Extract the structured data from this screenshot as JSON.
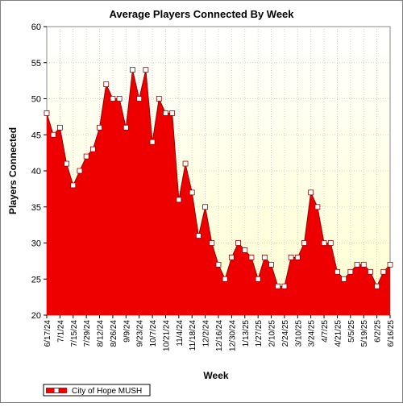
{
  "chart_data": {
    "type": "area",
    "title": "Average Players Connected By Week",
    "xlabel": "Week",
    "ylabel": "Players Connected",
    "ylim": [
      20,
      60
    ],
    "yticks": [
      20,
      25,
      30,
      35,
      40,
      45,
      50,
      55,
      60
    ],
    "x_tick_labels": [
      "6/17/24",
      "7/1/24",
      "7/15/24",
      "7/29/24",
      "8/12/24",
      "8/26/24",
      "9/9/24",
      "9/23/24",
      "10/7/24",
      "10/21/24",
      "11/4/24",
      "11/18/24",
      "12/2/24",
      "12/16/24",
      "12/30/24",
      "1/13/25",
      "1/27/25",
      "2/10/25",
      "2/24/25",
      "3/10/25",
      "3/24/25",
      "4/7/25",
      "4/21/25",
      "5/5/25",
      "5/19/25",
      "6/2/25",
      "6/16/25"
    ],
    "grid": true,
    "legend_position": "bottom-left",
    "colors": {
      "series_fill": "#ee0000",
      "series_line": "#990000",
      "marker_fill": "#ffffff",
      "plot_bg_top": "#ffffff",
      "plot_bg_bottom": "#ffffd0",
      "grid": "#c8c8c8"
    },
    "series": [
      {
        "name": "City of Hope MUSH",
        "values": [
          48,
          45,
          46,
          41,
          38,
          40,
          42,
          43,
          46,
          52,
          50,
          50,
          46,
          54,
          50,
          54,
          44,
          50,
          48,
          48,
          36,
          41,
          37,
          31,
          35,
          30,
          27,
          25,
          28,
          30,
          29,
          28,
          25,
          28,
          27,
          24,
          24,
          28,
          28,
          30,
          37,
          35,
          30,
          30,
          26,
          25,
          26,
          27,
          27,
          26,
          24,
          26,
          27
        ]
      }
    ]
  }
}
